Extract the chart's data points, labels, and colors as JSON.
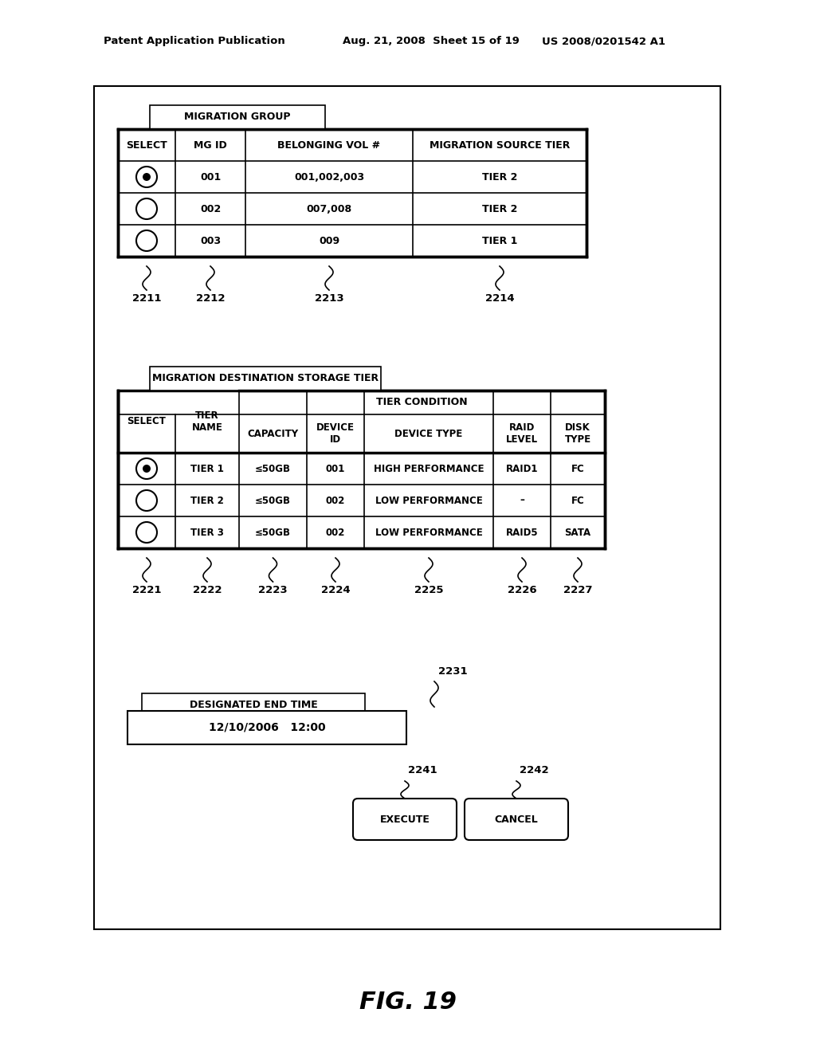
{
  "bg_color": "#ffffff",
  "header_text_left": "Patent Application Publication",
  "header_text_mid": "Aug. 21, 2008  Sheet 15 of 19",
  "header_text_right": "US 2008/0201542 A1",
  "fig_label": "FIG. 19",
  "table1_title": "MIGRATION GROUP",
  "table1_headers": [
    "SELECT",
    "MG ID",
    "BELONGING VOL #",
    "MIGRATION SOURCE TIER"
  ],
  "table1_rows": [
    [
      "radio_filled",
      "001",
      "001,002,003",
      "TIER 2"
    ],
    [
      "radio_empty",
      "002",
      "007,008",
      "TIER 2"
    ],
    [
      "radio_empty",
      "003",
      "009",
      "TIER 1"
    ]
  ],
  "table1_labels": [
    "2211",
    "2212",
    "2213",
    "2214"
  ],
  "table2_title": "MIGRATION DESTINATION STORAGE TIER",
  "table2_col_headers": [
    "SELECT",
    "TIER\nNAME",
    "CAPACITY",
    "DEVICE\nID",
    "DEVICE TYPE",
    "RAID\nLEVEL",
    "DISK\nTYPE"
  ],
  "table2_subheader": "TIER CONDITION",
  "table2_rows": [
    [
      "radio_filled",
      "TIER 1",
      "≤50GB",
      "001",
      "HIGH PERFORMANCE",
      "RAID1",
      "FC"
    ],
    [
      "radio_empty",
      "TIER 2",
      "≤50GB",
      "002",
      "LOW PERFORMANCE",
      "–",
      "FC"
    ],
    [
      "radio_empty",
      "TIER 3",
      "≤50GB",
      "002",
      "LOW PERFORMANCE",
      "RAID5",
      "SATA"
    ]
  ],
  "table2_labels": [
    "2221",
    "2222",
    "2223",
    "2224",
    "2225",
    "2226",
    "2227"
  ],
  "end_time_label": "DESIGNATED END TIME",
  "end_time_value": "12/10/2006   12:00",
  "end_time_ref": "2231",
  "btn1_label": "EXECUTE",
  "btn1_ref": "2241",
  "btn2_label": "CANCEL",
  "btn2_ref": "2242"
}
